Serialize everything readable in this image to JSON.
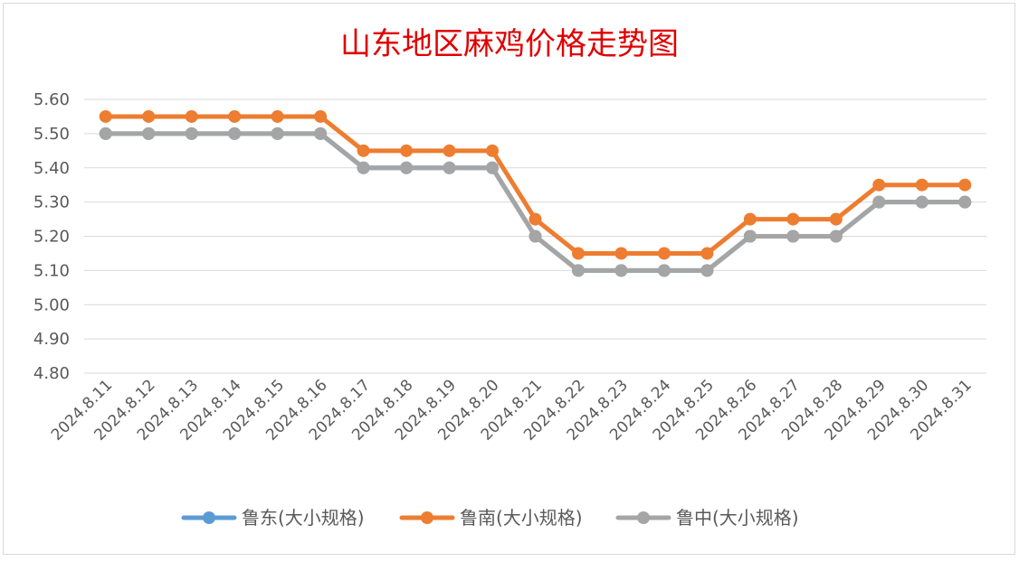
{
  "chart_data": {
    "type": "line",
    "title": "山东地区麻鸡价格走势图",
    "xlabel": "",
    "ylabel": "",
    "ylim": [
      4.8,
      5.6
    ],
    "yticks": [
      "5.60",
      "5.50",
      "5.40",
      "5.30",
      "5.20",
      "5.10",
      "5.00",
      "4.90",
      "4.80"
    ],
    "grid": true,
    "legend_position": "bottom",
    "categories": [
      "2024.8.11",
      "2024.8.12",
      "2024.8.13",
      "2024.8.14",
      "2024.8.15",
      "2024.8.16",
      "2024.8.17",
      "2024.8.18",
      "2024.8.19",
      "2024.8.20",
      "2024.8.21",
      "2024.8.22",
      "2024.8.23",
      "2024.8.24",
      "2024.8.25",
      "2024.8.26",
      "2024.8.27",
      "2024.8.28",
      "2024.8.29",
      "2024.8.30",
      "2024.8.31"
    ],
    "series": [
      {
        "name": "鲁东(大小规格)",
        "color": "#5b9bd5",
        "values": [
          5.5,
          5.5,
          5.5,
          5.5,
          5.5,
          5.5,
          5.4,
          5.4,
          5.4,
          5.4,
          5.2,
          5.1,
          5.1,
          5.1,
          5.1,
          5.2,
          5.2,
          5.2,
          5.3,
          5.3,
          5.3
        ]
      },
      {
        "name": "鲁南(大小规格)",
        "color": "#ed7d31",
        "values": [
          5.55,
          5.55,
          5.55,
          5.55,
          5.55,
          5.55,
          5.45,
          5.45,
          5.45,
          5.45,
          5.25,
          5.15,
          5.15,
          5.15,
          5.15,
          5.25,
          5.25,
          5.25,
          5.35,
          5.35,
          5.35
        ]
      },
      {
        "name": "鲁中(大小规格)",
        "color": "#a5a5a5",
        "values": [
          5.5,
          5.5,
          5.5,
          5.5,
          5.5,
          5.5,
          5.4,
          5.4,
          5.4,
          5.4,
          5.2,
          5.1,
          5.1,
          5.1,
          5.1,
          5.2,
          5.2,
          5.2,
          5.3,
          5.3,
          5.3
        ]
      }
    ]
  }
}
